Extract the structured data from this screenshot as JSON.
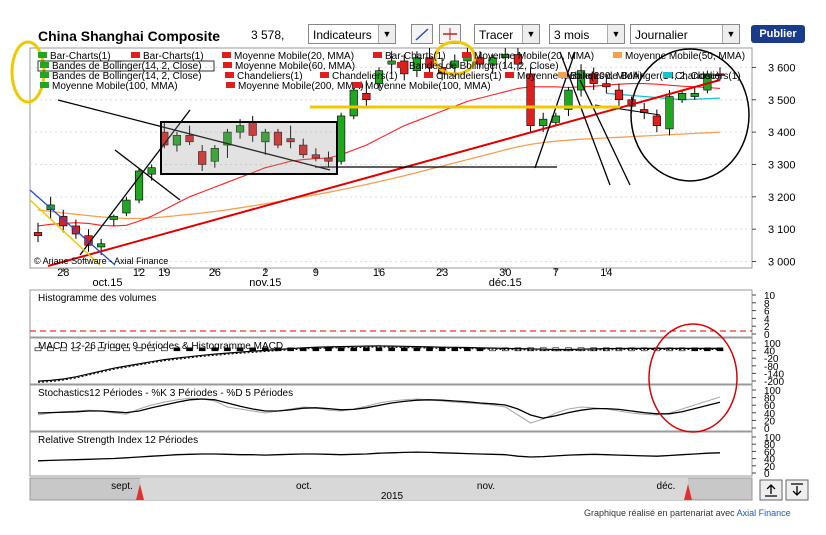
{
  "header": {
    "title": "China Shanghai Composite",
    "price": "3 578,",
    "indicators_label": "Indicateurs",
    "tracer_label": "Tracer",
    "period_label": "3 mois",
    "frequency_label": "Journalier",
    "publish_label": "Publier"
  },
  "legend": {
    "row1": [
      "Bar-Charts(1)",
      "Bar-Charts(1)",
      "Moyenne Mobile(20, MMA)",
      "Bar-Charts(1)",
      "Moyenne Mobile(20, MMA)",
      "Moyenne Mobile(50, MMA)"
    ],
    "row2": [
      "Bandes de Bollinger(14, 2, Close)",
      "Moyenne Mobile(60, MMA)",
      "Bandes de Bollinger(14, 2, Close)"
    ],
    "row3": [
      "Bandes de Bollinger(14, 2, Close)",
      "Chandeliers(1)",
      "Chandeliers(1)",
      "Chandeliers(1)",
      "Moyenne Mobile(200, MMA)",
      "Bandes de Bollinger(14, 2, Close)",
      "Chandeliers(1)"
    ],
    "row4": [
      "Moyenne Mobile(100, MMA)",
      "Moyenne Mobile(200, MMA)",
      "Moyenne Mobile(100, MMA)"
    ]
  },
  "copyright": "© Ariane Software - Axial Finance",
  "panels": {
    "volume_title": "Histogramme des volumes",
    "macd_title": "MACD 12-26   Trigger 9 périodes & Histogramme MACD",
    "stoch_title": "Stochastics12 Périodes  -  %K 3 Périodes  -  %D 5 Périodes",
    "rsi_title": "Relative Strength Index 12 Périodes"
  },
  "navigator": {
    "months": [
      "sept.",
      "oct.",
      "nov.",
      "déc."
    ],
    "year": "2015"
  },
  "credit_prefix": "Graphique réalisé en partenariat avec",
  "credit_brand": "Axial Finance",
  "colors": {
    "up": "#1fa81f",
    "down": "#e01e1e",
    "trend": "#e00000",
    "bollinger": "#ff2020",
    "ma_yellow": "#f0c800",
    "ma_orange": "#f5a050",
    "ma_cyan": "#19c0d0"
  },
  "chart_data": [
    {
      "type": "candlestick",
      "title": "China Shanghai Composite",
      "x_tick_labels": [
        "28",
        "oct.15",
        "12",
        "19",
        "26",
        "2",
        "nov.15",
        "9",
        "16",
        "23",
        "30",
        "déc.15",
        "7",
        "14"
      ],
      "y_ticks": [
        3000,
        3100,
        3200,
        3300,
        3400,
        3500,
        3600
      ],
      "y_tick_labels": [
        "3 000",
        "3 100",
        "3 200",
        "3 300",
        "3 400",
        "3 500",
        "3 600"
      ],
      "ylim": [
        2980,
        3660
      ],
      "candles": [
        {
          "o": 3090,
          "h": 3120,
          "l": 3060,
          "c": 3080
        },
        {
          "o": 3160,
          "h": 3200,
          "l": 3130,
          "c": 3175
        },
        {
          "o": 3140,
          "h": 3160,
          "l": 3090,
          "c": 3110
        },
        {
          "o": 3110,
          "h": 3130,
          "l": 3070,
          "c": 3085
        },
        {
          "o": 3080,
          "h": 3100,
          "l": 3030,
          "c": 3050
        },
        {
          "o": 3045,
          "h": 3070,
          "l": 3020,
          "c": 3055
        },
        {
          "o": 3130,
          "h": 3145,
          "l": 3110,
          "c": 3140
        },
        {
          "o": 3150,
          "h": 3200,
          "l": 3140,
          "c": 3190
        },
        {
          "o": 3190,
          "h": 3290,
          "l": 3180,
          "c": 3280
        },
        {
          "o": 3270,
          "h": 3300,
          "l": 3250,
          "c": 3290
        },
        {
          "o": 3400,
          "h": 3430,
          "l": 3350,
          "c": 3360
        },
        {
          "o": 3360,
          "h": 3400,
          "l": 3340,
          "c": 3390
        },
        {
          "o": 3390,
          "h": 3420,
          "l": 3360,
          "c": 3370
        },
        {
          "o": 3340,
          "h": 3360,
          "l": 3280,
          "c": 3300
        },
        {
          "o": 3310,
          "h": 3360,
          "l": 3290,
          "c": 3350
        },
        {
          "o": 3360,
          "h": 3410,
          "l": 3320,
          "c": 3400
        },
        {
          "o": 3400,
          "h": 3440,
          "l": 3380,
          "c": 3420
        },
        {
          "o": 3430,
          "h": 3450,
          "l": 3370,
          "c": 3390
        },
        {
          "o": 3370,
          "h": 3410,
          "l": 3330,
          "c": 3400
        },
        {
          "o": 3400,
          "h": 3410,
          "l": 3350,
          "c": 3360
        },
        {
          "o": 3380,
          "h": 3420,
          "l": 3350,
          "c": 3370
        },
        {
          "o": 3360,
          "h": 3380,
          "l": 3320,
          "c": 3330
        },
        {
          "o": 3330,
          "h": 3350,
          "l": 3310,
          "c": 3320
        },
        {
          "o": 3320,
          "h": 3340,
          "l": 3290,
          "c": 3310
        },
        {
          "o": 3310,
          "h": 3460,
          "l": 3300,
          "c": 3450
        },
        {
          "o": 3450,
          "h": 3540,
          "l": 3440,
          "c": 3530
        },
        {
          "o": 3520,
          "h": 3560,
          "l": 3480,
          "c": 3500
        },
        {
          "o": 3550,
          "h": 3600,
          "l": 3530,
          "c": 3590
        },
        {
          "o": 3610,
          "h": 3650,
          "l": 3580,
          "c": 3620
        },
        {
          "o": 3620,
          "h": 3640,
          "l": 3560,
          "c": 3580
        },
        {
          "o": 3590,
          "h": 3650,
          "l": 3570,
          "c": 3630
        },
        {
          "o": 3630,
          "h": 3660,
          "l": 3580,
          "c": 3600
        },
        {
          "o": 3600,
          "h": 3630,
          "l": 3560,
          "c": 3580
        },
        {
          "o": 3600,
          "h": 3640,
          "l": 3570,
          "c": 3620
        },
        {
          "o": 3620,
          "h": 3660,
          "l": 3600,
          "c": 3640
        },
        {
          "o": 3630,
          "h": 3650,
          "l": 3600,
          "c": 3610
        },
        {
          "o": 3610,
          "h": 3640,
          "l": 3580,
          "c": 3630
        },
        {
          "o": 3630,
          "h": 3660,
          "l": 3600,
          "c": 3640
        },
        {
          "o": 3640,
          "h": 3660,
          "l": 3590,
          "c": 3610
        },
        {
          "o": 3580,
          "h": 3600,
          "l": 3400,
          "c": 3420
        },
        {
          "o": 3420,
          "h": 3460,
          "l": 3400,
          "c": 3440
        },
        {
          "o": 3430,
          "h": 3460,
          "l": 3420,
          "c": 3450
        },
        {
          "o": 3470,
          "h": 3540,
          "l": 3450,
          "c": 3530
        },
        {
          "o": 3530,
          "h": 3610,
          "l": 3510,
          "c": 3590
        },
        {
          "o": 3580,
          "h": 3600,
          "l": 3530,
          "c": 3550
        },
        {
          "o": 3550,
          "h": 3580,
          "l": 3520,
          "c": 3540
        },
        {
          "o": 3530,
          "h": 3550,
          "l": 3480,
          "c": 3500
        },
        {
          "o": 3500,
          "h": 3510,
          "l": 3460,
          "c": 3480
        },
        {
          "o": 3470,
          "h": 3490,
          "l": 3440,
          "c": 3460
        },
        {
          "o": 3450,
          "h": 3470,
          "l": 3400,
          "c": 3420
        },
        {
          "o": 3410,
          "h": 3530,
          "l": 3390,
          "c": 3510
        },
        {
          "o": 3500,
          "h": 3530,
          "l": 3490,
          "c": 3520
        },
        {
          "o": 3510,
          "h": 3540,
          "l": 3500,
          "c": 3520
        },
        {
          "o": 3530,
          "h": 3590,
          "l": 3520,
          "c": 3580
        },
        {
          "o": 3580,
          "h": 3600,
          "l": 3560,
          "c": 3578
        }
      ],
      "moving_average_20": [
        3110,
        3115,
        3118,
        3120,
        3118,
        3112,
        3110,
        3112,
        3125,
        3140,
        3160,
        3180,
        3200,
        3215,
        3230,
        3245,
        3260,
        3275,
        3290,
        3300,
        3310,
        3315,
        3318,
        3320,
        3330,
        3345,
        3360,
        3380,
        3400,
        3420,
        3435,
        3450,
        3465,
        3480,
        3495,
        3505,
        3515,
        3525,
        3535,
        3540,
        3540,
        3540,
        3538,
        3540,
        3542,
        3545,
        3548,
        3550,
        3550,
        3548,
        3545,
        3542,
        3540,
        3538,
        3535
      ],
      "moving_average_50": [
        3160,
        3155,
        3150,
        3146,
        3142,
        3138,
        3135,
        3133,
        3133,
        3135,
        3138,
        3142,
        3146,
        3150,
        3155,
        3160,
        3166,
        3172,
        3178,
        3185,
        3192,
        3200,
        3207,
        3214,
        3222,
        3230,
        3238,
        3247,
        3256,
        3265,
        3275,
        3285,
        3295,
        3305,
        3315,
        3325,
        3335,
        3345,
        3355,
        3362,
        3368,
        3372,
        3375,
        3378,
        3380,
        3382,
        3384,
        3386,
        3388,
        3390,
        3392,
        3394,
        3396,
        3398,
        3400
      ]
    },
    {
      "type": "area",
      "title": "Histogramme des volumes",
      "y_tick_labels": [
        "10",
        "8",
        "6",
        "4",
        "2",
        "0"
      ]
    },
    {
      "type": "line",
      "title": "MACD 12-26   Trigger 9 périodes & Histogramme MACD",
      "y_tick_labels": [
        "100",
        "40",
        "-20",
        "-80",
        "-140",
        "-200"
      ],
      "macd": [
        -190,
        -185,
        -175,
        -160,
        -140,
        -120,
        -100,
        -85,
        -70,
        -55,
        -40,
        -30,
        -20,
        -10,
        -2,
        5,
        12,
        18,
        24,
        30,
        36,
        42,
        46,
        48,
        50,
        52,
        54,
        55,
        54,
        52,
        50,
        48,
        46,
        45,
        44,
        42,
        40,
        38,
        36,
        34,
        32,
        30,
        30,
        32,
        34,
        36,
        37,
        38,
        38,
        38,
        38,
        38,
        38,
        38,
        38
      ],
      "histogram": [
        -40,
        -38,
        -35,
        -32,
        -28,
        -24,
        -20,
        -16,
        -12,
        -8,
        -4,
        0,
        4,
        6,
        8,
        10,
        12,
        13,
        14,
        14,
        14,
        14,
        13,
        12,
        11,
        10,
        9,
        8,
        7,
        6,
        5,
        4,
        3,
        2,
        1,
        0,
        -2,
        -4,
        -6,
        -8,
        -10,
        -12,
        -10,
        -8,
        -6,
        -5,
        -4,
        -3,
        -2,
        -2,
        -1,
        -1,
        0,
        0,
        0
      ]
    },
    {
      "type": "line",
      "title": "Stochastics12 Périodes  -  %K 3 Périodes  -  %D 5 Périodes",
      "y_tick_labels": [
        "100",
        "80",
        "60",
        "40",
        "20",
        "0"
      ],
      "k": [
        40,
        45,
        48,
        50,
        52,
        50,
        45,
        42,
        55,
        65,
        72,
        78,
        82,
        80,
        75,
        60,
        55,
        50,
        45,
        50,
        55,
        60,
        58,
        52,
        50,
        55,
        62,
        70,
        75,
        78,
        80,
        78,
        75,
        72,
        70,
        68,
        65,
        60,
        40,
        20,
        30,
        45,
        55,
        60,
        58,
        55,
        50,
        45,
        42,
        40,
        45,
        55,
        65,
        75,
        85
      ],
      "d": [
        45,
        46,
        47,
        48,
        50,
        50,
        48,
        46,
        50,
        58,
        65,
        72,
        78,
        80,
        78,
        70,
        62,
        55,
        50,
        50,
        53,
        57,
        58,
        56,
        53,
        54,
        58,
        64,
        70,
        74,
        77,
        78,
        77,
        75,
        73,
        70,
        68,
        65,
        55,
        40,
        32,
        38,
        46,
        52,
        56,
        56,
        54,
        50,
        46,
        43,
        43,
        48,
        56,
        64,
        72
      ]
    },
    {
      "type": "line",
      "title": "Relative Strength Index 12 Périodes",
      "y_tick_labels": [
        "100",
        "80",
        "60",
        "40",
        "20",
        "0"
      ],
      "rsi": [
        40,
        41,
        42,
        43,
        44,
        45,
        46,
        48,
        50,
        52,
        54,
        56,
        57,
        58,
        58,
        57,
        56,
        56,
        55,
        56,
        57,
        58,
        58,
        57,
        56,
        57,
        58,
        60,
        61,
        62,
        63,
        62,
        61,
        60,
        59,
        58,
        57,
        56,
        52,
        50,
        51,
        53,
        55,
        56,
        57,
        56,
        55,
        54,
        53,
        52,
        54,
        56,
        58,
        60,
        61
      ]
    }
  ]
}
